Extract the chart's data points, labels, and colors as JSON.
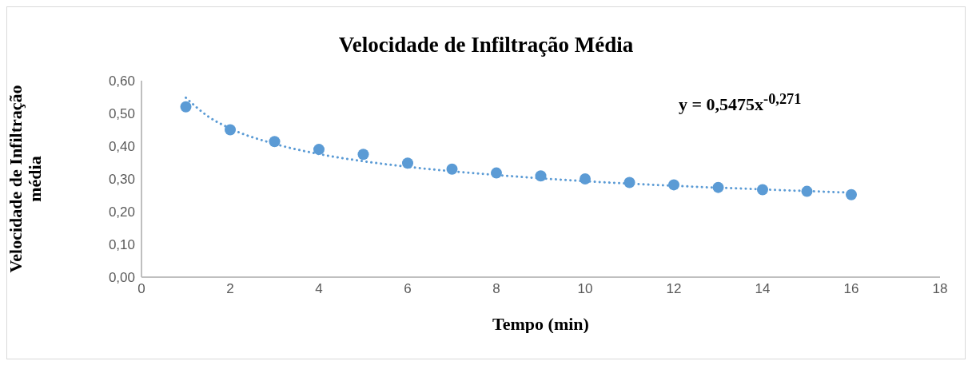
{
  "chart_data": {
    "type": "scatter",
    "title": "Velocidade de Infiltração Média",
    "xlabel": "Tempo (min)",
    "ylabel": "Velocidade de Infiltração média",
    "annotations": [
      "y = 0,5475x$^{-0,271}$"
    ],
    "series": [
      {
        "color": "#5b9bd5",
        "marker": "circle",
        "x": [
          1,
          2,
          3,
          4,
          5,
          6,
          7,
          8,
          9,
          10,
          11,
          12,
          13,
          14,
          15,
          16
        ],
        "values": [
          0.52,
          0.45,
          0.414,
          0.39,
          0.375,
          0.348,
          0.33,
          0.318,
          0.309,
          0.3,
          0.289,
          0.282,
          0.274,
          0.267,
          0.262,
          0.252
        ]
      },
      {
        "type": "line",
        "color": "#5b9bd5",
        "line_style": "dotted",
        "marker": "none",
        "x": [
          1,
          1.5,
          2,
          3,
          4,
          5,
          6,
          8,
          10,
          12,
          14,
          16
        ],
        "values": [
          0.548,
          0.491,
          0.454,
          0.407,
          0.376,
          0.354,
          0.337,
          0.312,
          0.293,
          0.279,
          0.268,
          0.258
        ]
      }
    ],
    "xlim": [
      0,
      18
    ],
    "xticks": [
      0,
      2,
      4,
      6,
      8,
      10,
      12,
      14,
      16,
      18
    ],
    "ylim": [
      0,
      0.6
    ],
    "yticks": [
      {
        "value": 0,
        "label": "0,00"
      },
      {
        "value": 0.1,
        "label": "0,10"
      },
      {
        "value": 0.2,
        "label": "0,20"
      },
      {
        "value": 0.3,
        "label": "0,30"
      },
      {
        "value": 0.4,
        "label": "0,40"
      },
      {
        "value": 0.5,
        "label": "0,50"
      },
      {
        "value": 0.6,
        "label": "0,60"
      }
    ],
    "grid": false,
    "legend": false
  }
}
